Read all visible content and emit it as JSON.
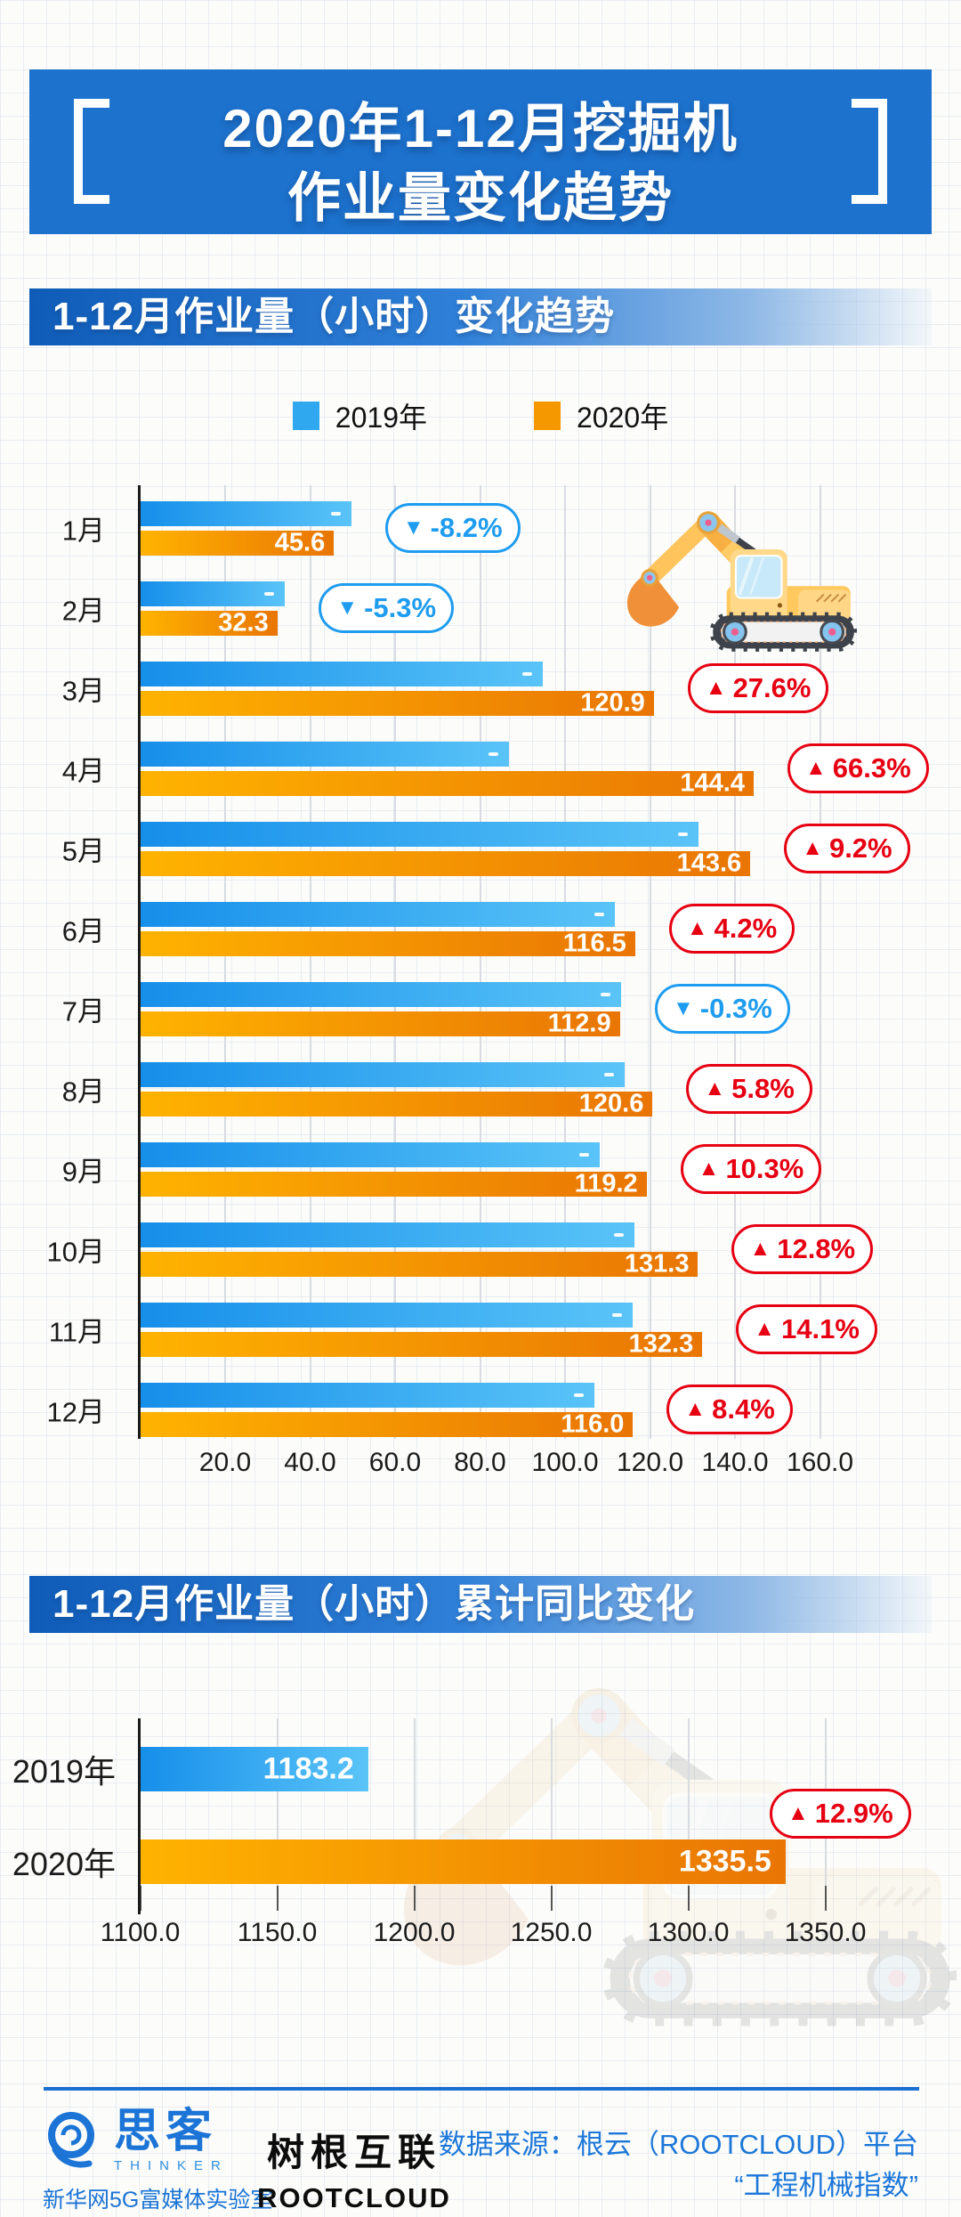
{
  "poster": {
    "title_line1": "2020年1-12月挖掘机",
    "title_line2": "作业量变化趋势"
  },
  "sections": {
    "monthly_header": "1-12月作业量（小时）变化趋势",
    "cumulative_header": "1-12月作业量（小时）累计同比变化"
  },
  "legend": {
    "items": [
      {
        "label": "2019年",
        "color": "#2FA8F0"
      },
      {
        "label": "2020年",
        "color": "#F59800"
      }
    ]
  },
  "colors": {
    "banner_blue": "#1D72CD",
    "bar_blue_gradient": [
      "#168FEA",
      "#5AC4F8"
    ],
    "bar_orange_gradient": [
      "#FFB300",
      "#E97504"
    ],
    "badge_up_red": "#E60012",
    "badge_down_blue": "#1E9CF0",
    "footer_blue": "#1B74D6",
    "rootcloud_green": "#2BAE66"
  },
  "chart_data": [
    {
      "type": "bar",
      "orientation": "horizontal",
      "title": "1-12月作业量（小时）变化趋势",
      "categories": [
        "1月",
        "2月",
        "3月",
        "4月",
        "5月",
        "6月",
        "7月",
        "8月",
        "9月",
        "10月",
        "11月",
        "12月"
      ],
      "series": [
        {
          "name": "2019年",
          "values": [
            49.7,
            34.1,
            94.7,
            86.8,
            131.5,
            111.8,
            113.2,
            114.0,
            108.1,
            116.4,
            116.0,
            107.0
          ],
          "values_labeled": false,
          "note": "unlabeled in figure; estimated from 2020 values and YoY badges"
        },
        {
          "name": "2020年",
          "values": [
            45.6,
            32.3,
            120.9,
            144.4,
            143.6,
            116.5,
            112.9,
            120.6,
            119.2,
            131.3,
            132.3,
            116.0
          ],
          "values_labeled": true
        }
      ],
      "yoy_badges": [
        {
          "dir": "down",
          "label": "-8.2%"
        },
        {
          "dir": "down",
          "label": "-5.3%"
        },
        {
          "dir": "up",
          "label": "27.6%"
        },
        {
          "dir": "up",
          "label": "66.3%"
        },
        {
          "dir": "up",
          "label": "9.2%"
        },
        {
          "dir": "up",
          "label": "4.2%"
        },
        {
          "dir": "down",
          "label": "-0.3%"
        },
        {
          "dir": "up",
          "label": "5.8%"
        },
        {
          "dir": "up",
          "label": "10.3%"
        },
        {
          "dir": "up",
          "label": "12.8%"
        },
        {
          "dir": "up",
          "label": "14.1%"
        },
        {
          "dir": "up",
          "label": "8.4%"
        }
      ],
      "x_ticks": [
        20,
        40,
        60,
        80,
        100,
        120,
        140,
        160
      ],
      "xlim": [
        0,
        170
      ],
      "grid": "vertical"
    },
    {
      "type": "bar",
      "orientation": "horizontal",
      "title": "1-12月作业量（小时）累计同比变化",
      "categories": [
        "2019年",
        "2020年"
      ],
      "values": [
        1183.2,
        1335.5
      ],
      "yoy_badge": {
        "dir": "up",
        "label": "12.9%"
      },
      "x_ticks": [
        1100,
        1150,
        1200,
        1250,
        1300,
        1350
      ],
      "xlim": [
        1100,
        1360
      ],
      "grid": "vertical"
    }
  ],
  "footer": {
    "thinker_logo": {
      "chars": "思客",
      "latin": "THINKER",
      "subtitle": "新华网5G富媒体实验室"
    },
    "rootcloud_logo": {
      "chars": "树根互联",
      "latin": "ROOTCLOUD"
    },
    "source_line1": "数据来源：根云（ROOTCLOUD）平台",
    "source_line2": "“工程机械指数”"
  }
}
